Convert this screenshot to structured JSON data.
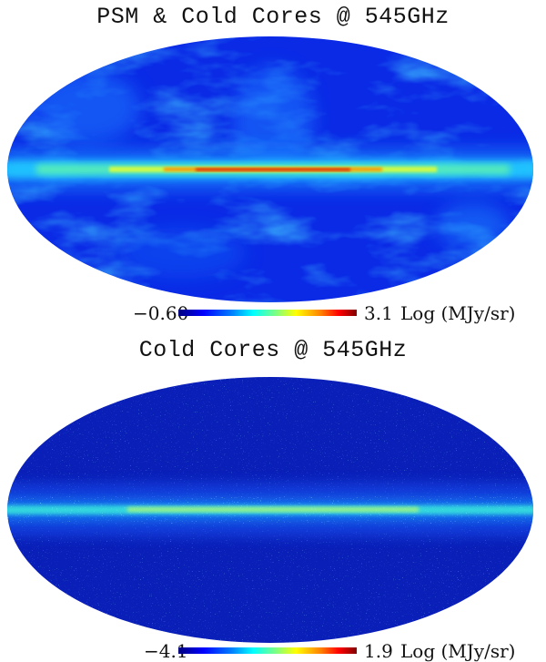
{
  "panels": [
    {
      "title": "PSM & Cold Cores @ 545GHz",
      "colorbar": {
        "min": "−0.60",
        "max": "3.1",
        "unit": "Log (MJy/sr)"
      }
    },
    {
      "title": "Cold Cores @ 545GHz",
      "colorbar": {
        "min": "−4.1",
        "max": "1.9",
        "unit": "Log (MJy/sr)"
      }
    }
  ],
  "colormap": [
    "#00007f",
    "#0000ff",
    "#0080ff",
    "#00ffff",
    "#80ff80",
    "#ffff00",
    "#ff8000",
    "#ff0000",
    "#800000"
  ]
}
